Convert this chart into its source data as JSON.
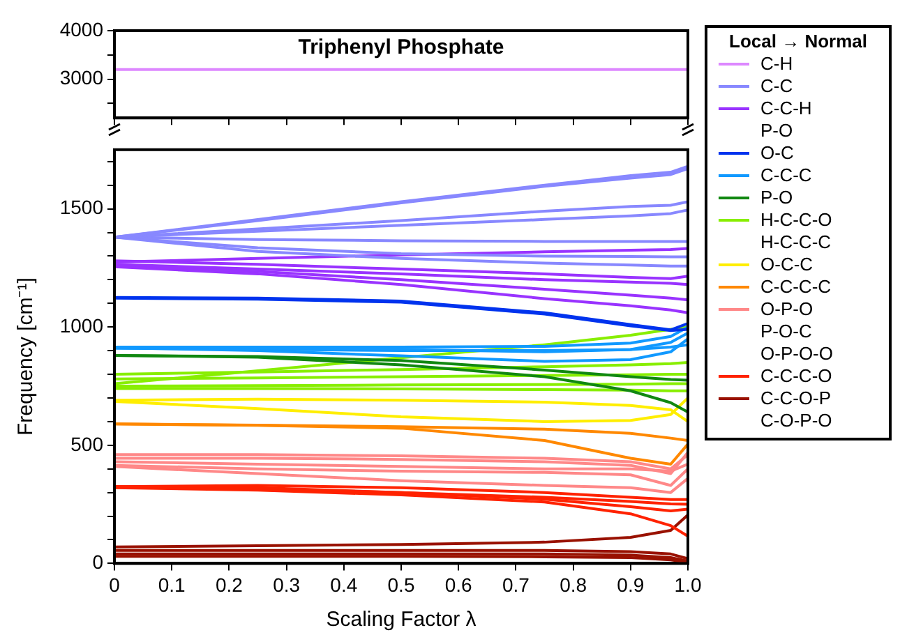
{
  "chart_data": [
    {
      "type": "line",
      "title": "Triphenyl Phosphate",
      "x": [
        0,
        0.25,
        0.5,
        0.75,
        0.9,
        0.97,
        1.0
      ],
      "xlim": [
        0,
        1
      ],
      "xticks": [
        0,
        0.1,
        0.2,
        0.3,
        0.4,
        0.5,
        0.6,
        0.7,
        0.8,
        0.9,
        1
      ],
      "ylim": [
        2200,
        4000
      ],
      "yticks": [
        {
          "value": 2500,
          "label": null
        },
        3000,
        {
          "value": 3500,
          "label": null
        },
        4000
      ],
      "tick_labels": "y",
      "legend": "right",
      "legend_title": "Local → Normal",
      "grid": false,
      "marker": "none",
      "series": [
        {
          "name": "C-H",
          "color": "#dd88ff",
          "values": [
            3200,
            3200,
            3200,
            3200,
            3200,
            3200,
            3200
          ]
        }
      ]
    },
    {
      "type": "line",
      "xlabel": "Scaling Factor λ",
      "ylabel": "Frequency [cm⁻¹]",
      "x": [
        0,
        0.25,
        0.5,
        0.75,
        0.9,
        0.97,
        1.0
      ],
      "xlim": [
        0,
        1
      ],
      "xticks": [
        0,
        0.1,
        0.2,
        0.3,
        0.4,
        0.5,
        0.6,
        0.7,
        0.8,
        0.9,
        {
          "value": 1,
          "label": "1.0"
        }
      ],
      "ylim": [
        0,
        1750
      ],
      "yticks": [
        0,
        {
          "value": 100,
          "label": null
        },
        {
          "value": 200,
          "label": null
        },
        {
          "value": 300,
          "label": null
        },
        {
          "value": 400,
          "label": null
        },
        500,
        {
          "value": 600,
          "label": null
        },
        {
          "value": 700,
          "label": null
        },
        {
          "value": 800,
          "label": null
        },
        {
          "value": 900,
          "label": null
        },
        1000,
        {
          "value": 1100,
          "label": null
        },
        {
          "value": 1200,
          "label": null
        },
        {
          "value": 1300,
          "label": null
        },
        {
          "value": 1400,
          "label": null
        },
        1500,
        {
          "value": 1600,
          "label": null
        },
        {
          "value": 1700,
          "label": null
        }
      ],
      "legend": "right",
      "grid": false,
      "marker": "none",
      "series": [
        {
          "name": "C-C",
          "color": "#8888ff",
          "values": [
            1380,
            1455,
            1530,
            1600,
            1640,
            1655,
            1680
          ]
        },
        {
          "color": "#8888ff",
          "values": [
            1380,
            1450,
            1525,
            1595,
            1630,
            1645,
            1670
          ]
        },
        {
          "color": "#8888ff",
          "values": [
            1380,
            1415,
            1450,
            1490,
            1510,
            1515,
            1530
          ]
        },
        {
          "color": "#8888ff",
          "values": [
            1380,
            1405,
            1430,
            1455,
            1470,
            1480,
            1495
          ]
        },
        {
          "color": "#8888ff",
          "values": [
            1380,
            1370,
            1365,
            1362,
            1362,
            1362,
            1362
          ]
        },
        {
          "color": "#8888ff",
          "values": [
            1380,
            1335,
            1310,
            1300,
            1298,
            1297,
            1297
          ]
        },
        {
          "color": "#8888ff",
          "values": [
            1380,
            1320,
            1290,
            1270,
            1262,
            1258,
            1258
          ]
        },
        {
          "name": "C-C-H\nP-O",
          "color": "#9933ff",
          "values": [
            1275,
            1290,
            1305,
            1318,
            1325,
            1328,
            1332
          ]
        },
        {
          "color": "#9933ff",
          "values": [
            1280,
            1265,
            1245,
            1225,
            1210,
            1205,
            1215
          ]
        },
        {
          "color": "#9933ff",
          "values": [
            1265,
            1245,
            1225,
            1200,
            1190,
            1185,
            1180
          ]
        },
        {
          "color": "#9933ff",
          "values": [
            1260,
            1235,
            1200,
            1160,
            1135,
            1122,
            1115
          ]
        },
        {
          "color": "#9933ff",
          "values": [
            1255,
            1225,
            1180,
            1120,
            1090,
            1072,
            1060
          ]
        },
        {
          "name": "O-C",
          "color": "#0033ee",
          "values": [
            1125,
            1122,
            1110,
            1060,
            1010,
            988,
            1015
          ]
        },
        {
          "color": "#0033ee",
          "values": [
            1122,
            1118,
            1105,
            1055,
            1005,
            985,
            990
          ]
        },
        {
          "name": "C-C-C",
          "color": "#1199ff",
          "values": [
            915,
            915,
            915,
            918,
            932,
            960,
            1000
          ]
        },
        {
          "color": "#1199ff",
          "values": [
            915,
            912,
            905,
            895,
            905,
            935,
            975
          ]
        },
        {
          "color": "#1199ff",
          "values": [
            912,
            900,
            878,
            855,
            862,
            895,
            950
          ]
        },
        {
          "color": "#1199ff",
          "values": [
            910,
            906,
            900,
            900,
            905,
            915,
            925
          ]
        },
        {
          "name": "P-O",
          "color": "#118811",
          "values": [
            880,
            872,
            840,
            790,
            730,
            680,
            640
          ]
        },
        {
          "color": "#118811",
          "values": [
            880,
            875,
            858,
            818,
            790,
            778,
            775
          ]
        },
        {
          "name": "H-C-C-O\nH-C-C-C",
          "color": "#88ee00",
          "values": [
            760,
            815,
            870,
            925,
            965,
            990,
            1000
          ]
        },
        {
          "color": "#88ee00",
          "values": [
            800,
            810,
            820,
            832,
            840,
            845,
            850
          ]
        },
        {
          "color": "#88ee00",
          "values": [
            780,
            785,
            790,
            795,
            798,
            800,
            800
          ]
        },
        {
          "color": "#88ee00",
          "values": [
            750,
            752,
            755,
            757,
            758,
            760,
            760
          ]
        },
        {
          "color": "#88ee00",
          "values": [
            740,
            740,
            738,
            735,
            733,
            730,
            730
          ]
        },
        {
          "name": "O-C-C",
          "color": "#ffee00",
          "values": [
            690,
            695,
            690,
            682,
            668,
            650,
            600
          ]
        },
        {
          "color": "#ffee00",
          "values": [
            685,
            655,
            620,
            600,
            605,
            630,
            700
          ]
        },
        {
          "name": "C-C-C-C",
          "color": "#ff8800",
          "values": [
            590,
            585,
            578,
            568,
            550,
            530,
            520
          ]
        },
        {
          "color": "#ff8800",
          "values": [
            590,
            584,
            572,
            520,
            445,
            420,
            505
          ]
        },
        {
          "name": "O-P-O\nP-O-C\nO-P-O-O",
          "color": "#ff8888",
          "values": [
            460,
            460,
            455,
            445,
            430,
            400,
            460
          ]
        },
        {
          "color": "#ff8888",
          "values": [
            445,
            445,
            440,
            430,
            415,
            380,
            470
          ]
        },
        {
          "color": "#ff8888",
          "values": [
            430,
            420,
            410,
            400,
            400,
            390,
            420
          ]
        },
        {
          "color": "#ff8888",
          "values": [
            415,
            400,
            390,
            385,
            375,
            330,
            400
          ]
        },
        {
          "color": "#ff8888",
          "values": [
            410,
            380,
            350,
            330,
            320,
            300,
            360
          ]
        },
        {
          "name": "C-C-C-O",
          "color": "#ff2200",
          "values": [
            325,
            330,
            320,
            300,
            280,
            270,
            270
          ]
        },
        {
          "color": "#ff2200",
          "values": [
            325,
            320,
            300,
            280,
            262,
            252,
            250
          ]
        },
        {
          "color": "#ff2200",
          "values": [
            320,
            310,
            290,
            260,
            210,
            160,
            115
          ]
        },
        {
          "color": "#ff2200",
          "values": [
            325,
            315,
            300,
            272,
            240,
            222,
            230
          ]
        },
        {
          "name": "C-C-O-P\nC-O-P-O",
          "color": "#991100",
          "values": [
            70,
            75,
            80,
            90,
            110,
            140,
            205
          ]
        },
        {
          "color": "#991100",
          "values": [
            55,
            55,
            55,
            55,
            50,
            40,
            20
          ]
        },
        {
          "color": "#991100",
          "values": [
            40,
            40,
            40,
            40,
            35,
            25,
            10
          ]
        },
        {
          "color": "#991100",
          "values": [
            30,
            30,
            30,
            28,
            25,
            15,
            5
          ]
        }
      ]
    }
  ]
}
